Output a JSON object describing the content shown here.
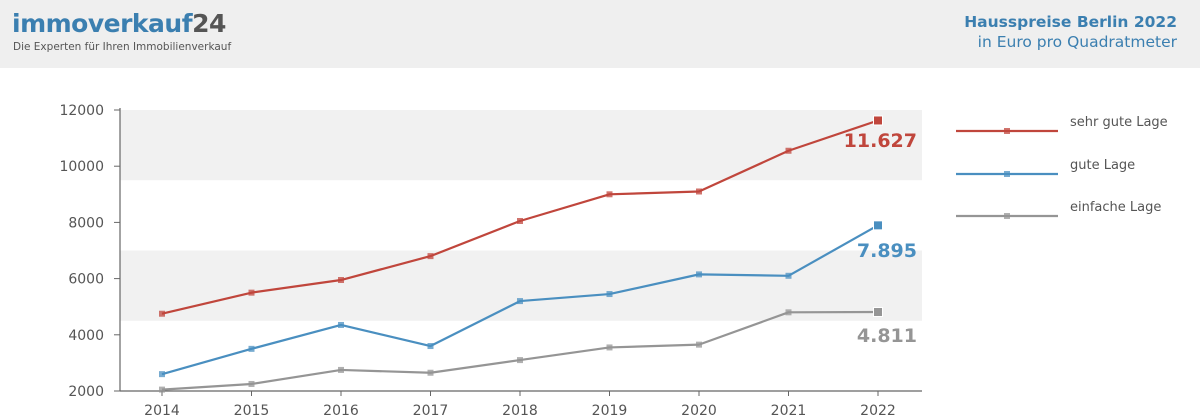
{
  "header": {
    "logo_main": "immoverkauf",
    "logo_num": "24",
    "tagline": "Die Experten für Ihren Immobilienverkauf",
    "title_line1": "Hausspreise Berlin 2022",
    "title_line2": "in Euro pro Quadratmeter"
  },
  "colors": {
    "brand_blue": "#3b7fb0",
    "header_bg": "#efefef",
    "band": "#f1f1f1",
    "sehr_gut": "#c0463c",
    "gut": "#4a8fc0",
    "einfach": "#959595"
  },
  "chart_data": {
    "type": "line",
    "title": "Hausspreise Berlin 2022",
    "subtitle": "in Euro pro Quadratmeter",
    "categories": [
      "2014",
      "2015",
      "2016",
      "2017",
      "2018",
      "2019",
      "2020",
      "2021",
      "2022"
    ],
    "yticks": [
      "12000",
      "10000",
      "8000",
      "6000",
      "4000",
      "2000"
    ],
    "ylim": [
      2000,
      12000
    ],
    "grid": false,
    "legend_position": "right",
    "series": [
      {
        "name": "sehr gute Lage",
        "color": "#c0463c",
        "end_label": "11.627",
        "values": [
          4750,
          5500,
          5950,
          6800,
          8050,
          9000,
          9100,
          10550,
          11627
        ]
      },
      {
        "name": "gute Lage",
        "color": "#4a8fc0",
        "end_label": "7.895",
        "values": [
          2600,
          3500,
          4350,
          3600,
          5200,
          5450,
          6150,
          6100,
          7895
        ]
      },
      {
        "name": "einfache Lage",
        "color": "#959595",
        "end_label": "4.811",
        "values": [
          2050,
          2250,
          2750,
          2650,
          3100,
          3550,
          3650,
          4800,
          4811
        ]
      }
    ]
  }
}
